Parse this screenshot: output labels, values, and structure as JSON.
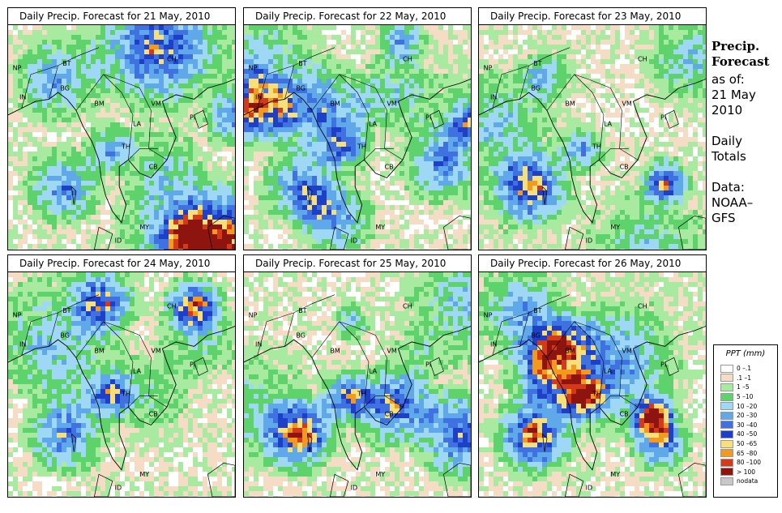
{
  "panels": [
    {
      "title": "Daily Precip. Forecast for  21 May, 2010",
      "seed": 11,
      "heavy": 0.15,
      "extreme": 0.05
    },
    {
      "title": "Daily Precip. Forecast for  22 May, 2010",
      "seed": 23,
      "heavy": 0.2,
      "extreme": 0.08
    },
    {
      "title": "Daily Precip. Forecast for  23 May, 2010",
      "seed": 37,
      "heavy": 0.15,
      "extreme": 0.06
    },
    {
      "title": "Daily Precip. Forecast for  24 May, 2010",
      "seed": 41,
      "heavy": 0.25,
      "extreme": 0.1
    },
    {
      "title": "Daily Precip. Forecast for  25 May, 2010",
      "seed": 53,
      "heavy": 0.45,
      "extreme": 0.15
    },
    {
      "title": "Daily Precip. Forecast for  26 May, 2010",
      "seed": 67,
      "heavy": 0.55,
      "extreme": 0.2
    }
  ],
  "country_labels": [
    "NP",
    "BT",
    "IN",
    "BG",
    "BM",
    "CH",
    "VM",
    "LA",
    "TH",
    "CB",
    "MY",
    "ID",
    "PI"
  ],
  "side": {
    "heading": [
      "Precip.",
      "Forecast"
    ],
    "lines": [
      "as of:",
      "21 May",
      "2010",
      "",
      "Daily",
      "Totals",
      "",
      "Data:",
      "NOAA–",
      "GFS"
    ]
  },
  "legend": {
    "title": "PPT (mm)",
    "items": [
      {
        "label": "0 –.1",
        "color": "#ffffff"
      },
      {
        "label": ".1 –1",
        "color": "#f5dcc4"
      },
      {
        "label": "1 –5",
        "color": "#a8eba0"
      },
      {
        "label": "5 –10",
        "color": "#5fd36b"
      },
      {
        "label": "10 –20",
        "color": "#9fd8f5"
      },
      {
        "label": "20 –30",
        "color": "#5fa9ea"
      },
      {
        "label": "30 –40",
        "color": "#3f72e0"
      },
      {
        "label": "40 –50",
        "color": "#1e3fc8"
      },
      {
        "label": "50 –65",
        "color": "#f7e07a"
      },
      {
        "label": "65 –80",
        "color": "#f39a1e"
      },
      {
        "label": "80 –100",
        "color": "#d4391a"
      },
      {
        "label": "> 100",
        "color": "#8e1410"
      },
      {
        "label": "nodata",
        "color": "#c8c8c8"
      }
    ]
  }
}
